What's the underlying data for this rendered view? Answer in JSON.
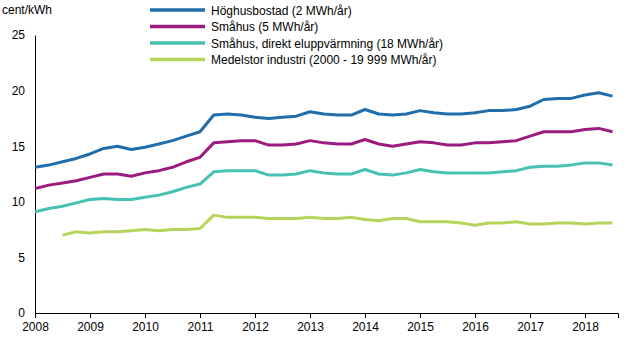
{
  "chart_data": {
    "type": "line",
    "y_label": "cent/kWh",
    "x": [
      2008,
      2008.25,
      2008.5,
      2008.75,
      2009,
      2009.25,
      2009.5,
      2009.75,
      2010,
      2010.25,
      2010.5,
      2010.75,
      2011,
      2011.25,
      2011.5,
      2011.75,
      2012,
      2012.25,
      2012.5,
      2012.75,
      2013,
      2013.25,
      2013.5,
      2013.75,
      2014,
      2014.25,
      2014.5,
      2014.75,
      2015,
      2015.25,
      2015.5,
      2015.75,
      2016,
      2016.25,
      2016.5,
      2016.75,
      2017,
      2017.25,
      2017.5,
      2017.75,
      2018,
      2018.25,
      2018.5
    ],
    "series": [
      {
        "name": "Höghusbostad (2 MWh/år)",
        "color": "#1f6eab",
        "values": [
          13.1,
          13.3,
          13.6,
          13.9,
          14.3,
          14.8,
          15.0,
          14.7,
          14.9,
          15.2,
          15.5,
          15.9,
          16.3,
          17.8,
          17.9,
          17.8,
          17.6,
          17.5,
          17.6,
          17.7,
          18.1,
          17.9,
          17.8,
          17.8,
          18.3,
          17.9,
          17.8,
          17.9,
          18.2,
          18.0,
          17.9,
          17.9,
          18.0,
          18.2,
          18.2,
          18.3,
          18.6,
          19.2,
          19.3,
          19.3,
          19.6,
          19.8,
          19.5
        ]
      },
      {
        "name": "Småhus (5 MWh/år)",
        "color": "#9c1b7e",
        "values": [
          11.2,
          11.5,
          11.7,
          11.9,
          12.2,
          12.5,
          12.5,
          12.3,
          12.6,
          12.8,
          13.1,
          13.6,
          14.0,
          15.3,
          15.4,
          15.5,
          15.5,
          15.1,
          15.1,
          15.2,
          15.5,
          15.3,
          15.2,
          15.2,
          15.6,
          15.2,
          15.0,
          15.2,
          15.4,
          15.3,
          15.1,
          15.1,
          15.3,
          15.3,
          15.4,
          15.5,
          15.9,
          16.3,
          16.3,
          16.3,
          16.5,
          16.6,
          16.3
        ]
      },
      {
        "name": "Småhus, direkt eluppvärmning (18 MWh/år)",
        "color": "#46c1b2",
        "values": [
          9.1,
          9.4,
          9.6,
          9.9,
          10.2,
          10.3,
          10.2,
          10.2,
          10.4,
          10.6,
          10.9,
          11.3,
          11.6,
          12.7,
          12.8,
          12.8,
          12.8,
          12.4,
          12.4,
          12.5,
          12.8,
          12.6,
          12.5,
          12.5,
          12.9,
          12.5,
          12.4,
          12.6,
          12.9,
          12.7,
          12.6,
          12.6,
          12.6,
          12.6,
          12.7,
          12.8,
          13.1,
          13.2,
          13.2,
          13.3,
          13.5,
          13.5,
          13.3
        ]
      },
      {
        "name": "Medelstor industri (2000 - 19 999 MWh/år)",
        "color": "#b7d45a",
        "values": [
          null,
          null,
          7.0,
          7.3,
          7.2,
          7.3,
          7.3,
          7.4,
          7.5,
          7.4,
          7.5,
          7.5,
          7.6,
          8.8,
          8.6,
          8.6,
          8.6,
          8.5,
          8.5,
          8.5,
          8.6,
          8.5,
          8.5,
          8.6,
          8.4,
          8.3,
          8.5,
          8.5,
          8.2,
          8.2,
          8.2,
          8.1,
          7.9,
          8.1,
          8.1,
          8.2,
          8.0,
          8.0,
          8.1,
          8.1,
          8.0,
          8.1,
          8.1
        ]
      }
    ],
    "xlim": [
      2008,
      2018.6
    ],
    "xticks": [
      2008,
      2009,
      2010,
      2011,
      2012,
      2013,
      2014,
      2015,
      2016,
      2017,
      2018
    ],
    "ylim": [
      0,
      25
    ],
    "yticks": [
      0,
      5,
      10,
      15,
      20,
      25
    ],
    "grid": false,
    "legend": "top-left"
  }
}
